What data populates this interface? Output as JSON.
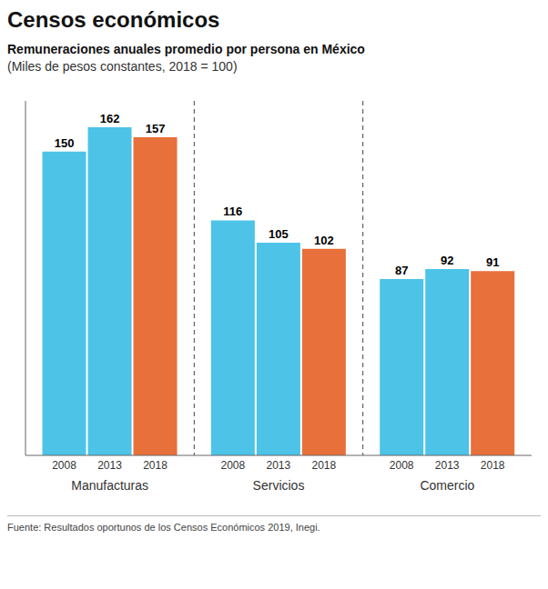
{
  "chart_data": {
    "type": "bar",
    "title": "Censos económicos",
    "subtitle": "Remuneraciones anuales promedio por persona en México",
    "annotations": [
      "(Miles de pesos constantes, 2018 = 100)",
      "Fuente: Resultados oportunos de los Censos Económicos 2019, Inegi."
    ],
    "categories": [
      "Manufacturas",
      "Servicios",
      "Comercio"
    ],
    "series": [
      {
        "name": "2008",
        "color": "#4DC3E8",
        "values": [
          150,
          116,
          87
        ]
      },
      {
        "name": "2013",
        "color": "#4DC3E8",
        "values": [
          162,
          105,
          92
        ]
      },
      {
        "name": "2018",
        "color": "#E8703A",
        "values": [
          157,
          102,
          91
        ]
      }
    ],
    "ylim": [
      0,
      175
    ],
    "data_labels": true,
    "tick_labels": "x",
    "grid": false
  }
}
